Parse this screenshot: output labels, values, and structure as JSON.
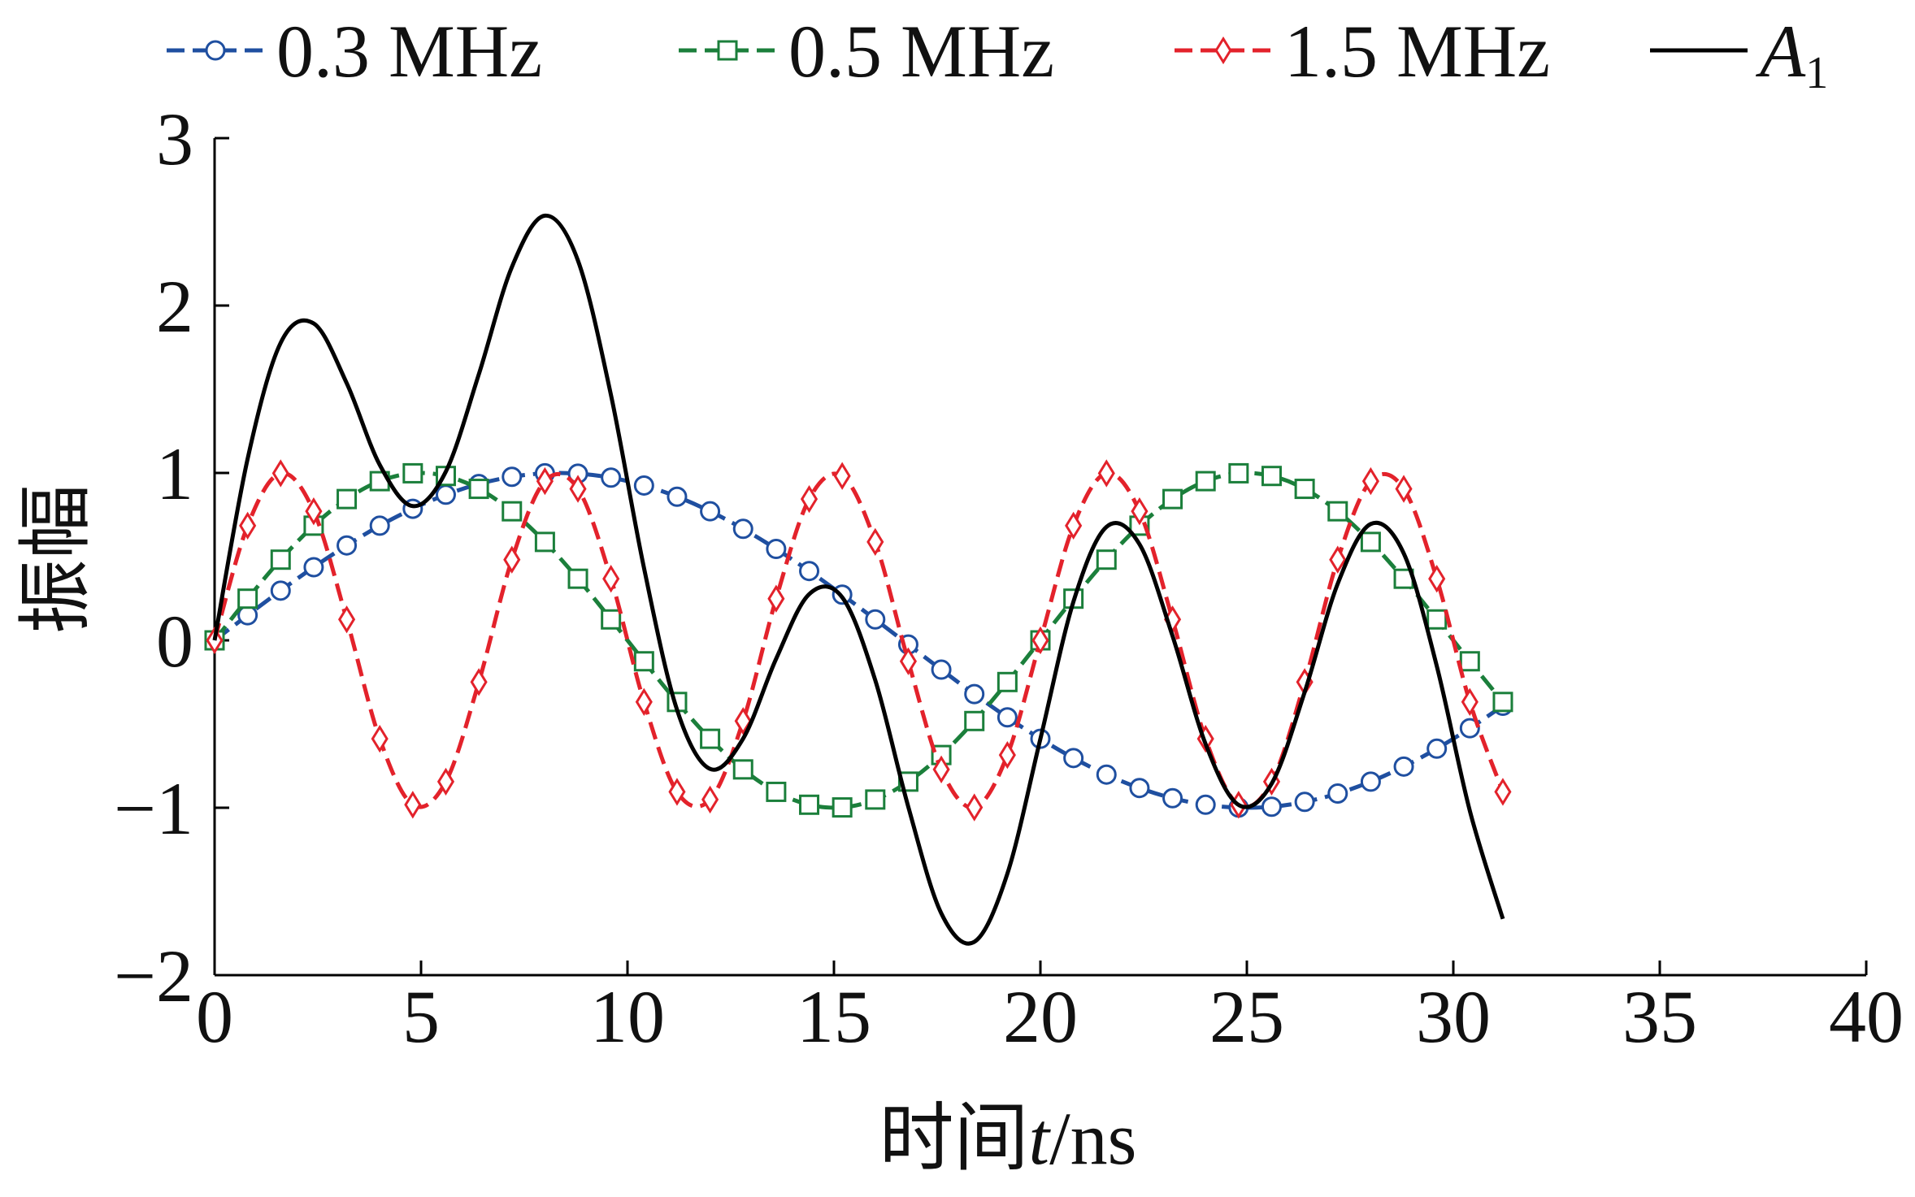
{
  "chart_data": {
    "type": "line",
    "title": "",
    "xlabel": {
      "prefix": "时间",
      "var": "t",
      "suffix": "/ns"
    },
    "ylabel": "振幅",
    "xlim": [
      0,
      40
    ],
    "ylim": [
      -2,
      3
    ],
    "xticks": [
      "0",
      "5",
      "10",
      "15",
      "20",
      "25",
      "30",
      "35",
      "40"
    ],
    "yticks": [
      "−2",
      "−1",
      "0",
      "1",
      "2",
      "3"
    ],
    "xtick_values": [
      0,
      5,
      10,
      15,
      20,
      25,
      30,
      35,
      40
    ],
    "ytick_values": [
      -2,
      -1,
      0,
      1,
      2,
      3
    ],
    "grid": false,
    "legend_position": "top",
    "x": [
      0,
      0.8,
      1.6,
      2.4,
      3.2,
      4.0,
      4.8,
      5.6,
      6.4,
      7.2,
      8.0,
      8.8,
      9.6,
      10.4,
      11.2,
      12.0,
      12.8,
      13.6,
      14.4,
      15.2,
      16.0,
      16.8,
      17.6,
      18.4,
      19.2,
      20.0,
      20.8,
      21.6,
      22.4,
      23.2,
      24.0,
      24.8,
      25.6,
      26.4,
      27.2,
      28.0,
      28.8,
      29.6,
      30.4,
      31.2
    ],
    "series": [
      {
        "name": "0.3 MHz",
        "color": "#1f4fa0",
        "marker": "circle",
        "dashed": true,
        "values": [
          0,
          0.15,
          0.297,
          0.437,
          0.567,
          0.685,
          0.786,
          0.87,
          0.934,
          0.977,
          0.998,
          0.996,
          0.972,
          0.925,
          0.858,
          0.771,
          0.666,
          0.546,
          0.414,
          0.273,
          0.125,
          -0.025,
          -0.175,
          -0.321,
          -0.46,
          -0.588,
          -0.703,
          -0.802,
          -0.882,
          -0.943,
          -0.982,
          -0.999,
          -0.994,
          -0.965,
          -0.915,
          -0.844,
          -0.754,
          -0.647,
          -0.525,
          -0.391
        ]
      },
      {
        "name": "0.5 MHz",
        "color": "#1b7f3b",
        "marker": "square",
        "dashed": true,
        "values": [
          0,
          0.249,
          0.482,
          0.685,
          0.844,
          0.951,
          0.998,
          0.982,
          0.905,
          0.771,
          0.588,
          0.368,
          0.125,
          -0.125,
          -0.368,
          -0.588,
          -0.771,
          -0.905,
          -0.982,
          -0.998,
          -0.951,
          -0.844,
          -0.685,
          -0.482,
          -0.249,
          0,
          0.249,
          0.482,
          0.685,
          0.844,
          0.951,
          0.998,
          0.982,
          0.905,
          0.771,
          0.588,
          0.368,
          0.125,
          -0.125,
          -0.368
        ]
      },
      {
        "name": "1.5 MHz",
        "color": "#e3222b",
        "marker": "diamond",
        "dashed": true,
        "values": [
          0,
          0.685,
          0.998,
          0.771,
          0.125,
          -0.588,
          -0.982,
          -0.844,
          -0.249,
          0.482,
          0.951,
          0.905,
          0.368,
          -0.368,
          -0.905,
          -0.951,
          -0.482,
          0.249,
          0.844,
          0.982,
          0.588,
          -0.125,
          -0.771,
          -0.998,
          -0.685,
          0,
          0.685,
          0.998,
          0.771,
          0.125,
          -0.588,
          -0.982,
          -0.844,
          -0.249,
          0.482,
          0.951,
          0.905,
          0.368,
          -0.368,
          -0.905
        ]
      },
      {
        "name": "A",
        "subscript": "1",
        "color": "#000000",
        "marker": "none",
        "dashed": false,
        "values": [
          0,
          1.084,
          1.777,
          1.893,
          1.536,
          1.048,
          0.802,
          1.008,
          1.59,
          2.23,
          2.537,
          2.269,
          1.465,
          0.432,
          -0.415,
          -0.768,
          -0.587,
          -0.11,
          0.276,
          0.257,
          -0.238,
          -0.994,
          -1.631,
          -1.801,
          -1.394,
          -0.588,
          0.231,
          0.678,
          0.574,
          0.026,
          -0.619,
          -0.983,
          -0.856,
          -0.309,
          0.338,
          0.695,
          0.519,
          -0.154,
          -1.018,
          -1.664
        ]
      }
    ]
  }
}
